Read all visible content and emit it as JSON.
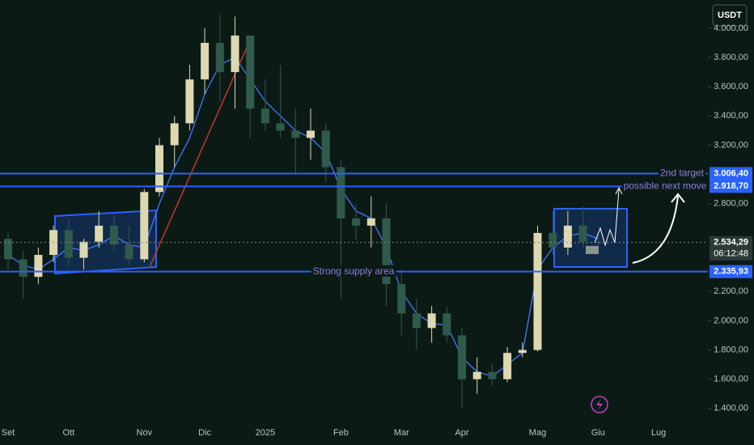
{
  "chart_data": {
    "type": "candlestick",
    "currency": "USDT",
    "categories": [
      "Set",
      null,
      null,
      null,
      "Ott",
      null,
      null,
      null,
      null,
      "Nov",
      null,
      null,
      null,
      "Dic",
      null,
      null,
      null,
      "2025",
      null,
      null,
      null,
      null,
      "Feb",
      null,
      null,
      null,
      "Mar",
      null,
      null,
      null,
      "Apr",
      null,
      null,
      null,
      null,
      "Mag",
      null,
      null,
      null,
      "Giu",
      null,
      null,
      null,
      "Lug",
      null
    ],
    "open": [
      2560,
      2420,
      2300,
      2450,
      2620,
      2430,
      2540,
      2650,
      2520,
      2420,
      2880,
      3200,
      3350,
      3650,
      3900,
      3700,
      3950,
      3450,
      3350,
      3300,
      3250,
      3300,
      3050,
      2700,
      2650,
      2700,
      2250,
      2050,
      1950,
      2050,
      1900,
      1600,
      1650,
      1600,
      1780,
      1800,
      2600,
      2500,
      2650,
      2540,
      null,
      null,
      null,
      null,
      null
    ],
    "high": [
      2600,
      2480,
      2500,
      2650,
      2700,
      2560,
      2750,
      2720,
      2650,
      2900,
      3250,
      3400,
      3750,
      4000,
      4100,
      4080,
      3950,
      3650,
      3750,
      3450,
      3450,
      3350,
      3100,
      2800,
      2850,
      2800,
      2350,
      2150,
      2100,
      2100,
      1950,
      1750,
      1700,
      1820,
      1850,
      2650,
      2750,
      2750,
      2780,
      2600,
      null,
      null,
      null,
      null,
      null
    ],
    "low": [
      2350,
      2150,
      2250,
      2400,
      2380,
      2350,
      2500,
      2480,
      2380,
      2400,
      2850,
      3050,
      3300,
      3550,
      3500,
      3450,
      3250,
      3300,
      3250,
      3000,
      3100,
      2950,
      2150,
      2550,
      2500,
      2100,
      1900,
      1800,
      1850,
      1850,
      1400,
      1500,
      1550,
      1580,
      1750,
      1790,
      2450,
      2450,
      2500,
      2480,
      null,
      null,
      null,
      null,
      null
    ],
    "close": [
      2420,
      2300,
      2450,
      2620,
      2430,
      2540,
      2650,
      2520,
      2420,
      2880,
      3200,
      3350,
      3650,
      3900,
      3700,
      3950,
      3450,
      3350,
      3300,
      3250,
      3300,
      3050,
      2700,
      2650,
      2700,
      2250,
      2050,
      1950,
      2050,
      1900,
      1600,
      1650,
      1600,
      1780,
      1800,
      2600,
      2500,
      2650,
      2540,
      2534.29,
      null,
      null,
      null,
      null,
      null
    ],
    "ma_values": [
      2450,
      2380,
      2350,
      2420,
      2500,
      2480,
      2520,
      2580,
      2520,
      2500,
      2800,
      3050,
      3250,
      3550,
      3750,
      3800,
      3650,
      3500,
      3400,
      3300,
      3250,
      3150,
      2900,
      2750,
      2700,
      2500,
      2200,
      2050,
      1980,
      1970,
      1750,
      1650,
      1620,
      1700,
      1780,
      2350,
      2500,
      2580,
      2600,
      2560,
      null,
      null,
      null,
      null,
      null
    ],
    "up_color": "#ddd8b0",
    "down_color": "#2f5a4c",
    "ma_color": "#3b7bff",
    "level_color": "#2962ff",
    "ylim": [
      1305,
      4193
    ],
    "yticks": [
      {
        "value": 1400,
        "label": "1.400,00"
      },
      {
        "value": 1600,
        "label": "1.600,00"
      },
      {
        "value": 1800,
        "label": "1.800,00"
      },
      {
        "value": 2000,
        "label": "2.000,00"
      },
      {
        "value": 2200,
        "label": "2.200,00"
      },
      {
        "value": 2800,
        "label": "2.800,00"
      },
      {
        "value": 3200,
        "label": "3.200,00"
      },
      {
        "value": 3400,
        "label": "3.400,00"
      },
      {
        "value": 3600,
        "label": "3.600,00"
      },
      {
        "value": 3800,
        "label": "3.800,00"
      },
      {
        "value": 4000,
        "label": "4.000,00"
      }
    ],
    "levels": [
      {
        "value": 3006.4,
        "label": "3.006,40",
        "text": "2nd target"
      },
      {
        "value": 2918.7,
        "label": "2.918,70",
        "text": "possible next move"
      },
      {
        "value": 2335.93,
        "label": "2.335,93",
        "text": "Strong supply area"
      }
    ],
    "last_price": {
      "value": 2534.29,
      "label": "2.534,29",
      "countdown": "06:12:48"
    }
  }
}
